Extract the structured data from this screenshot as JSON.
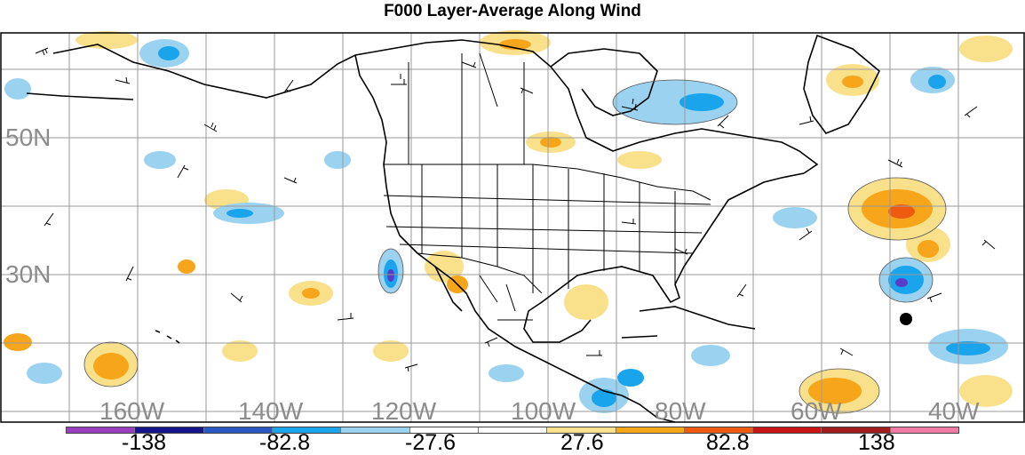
{
  "title": "F000 Layer-Average Along Wind",
  "lat_labels": [
    "50N",
    "30N"
  ],
  "lon_labels": [
    "160W",
    "140W",
    "120W",
    "100W",
    "80W",
    "60W",
    "40W"
  ],
  "colorbar": {
    "colors": [
      "#9b3fc0",
      "#16168c",
      "#2a58c4",
      "#1aa4ec",
      "#9ad2f0",
      "#ffffff",
      "#ffffff",
      "#f9e08a",
      "#f7a51b",
      "#ee5a10",
      "#c81414",
      "#a11c1c",
      "#f07aa4"
    ],
    "labels": [
      "-138",
      "-82.8",
      "-27.6",
      "27.6",
      "82.8",
      "138"
    ]
  },
  "colors": {
    "land_outline": "#000000",
    "grid": "#9a9a9a",
    "axis_label": "#8c8c8c",
    "positive_light": "#f9e08a",
    "positive_mid": "#f7a51b",
    "positive_strong": "#ee5a10",
    "negative_light": "#9ad2f0",
    "negative_mid": "#1aa4ec",
    "negative_strong": "#2a58c4",
    "negative_extreme": "#5a3cc8"
  }
}
